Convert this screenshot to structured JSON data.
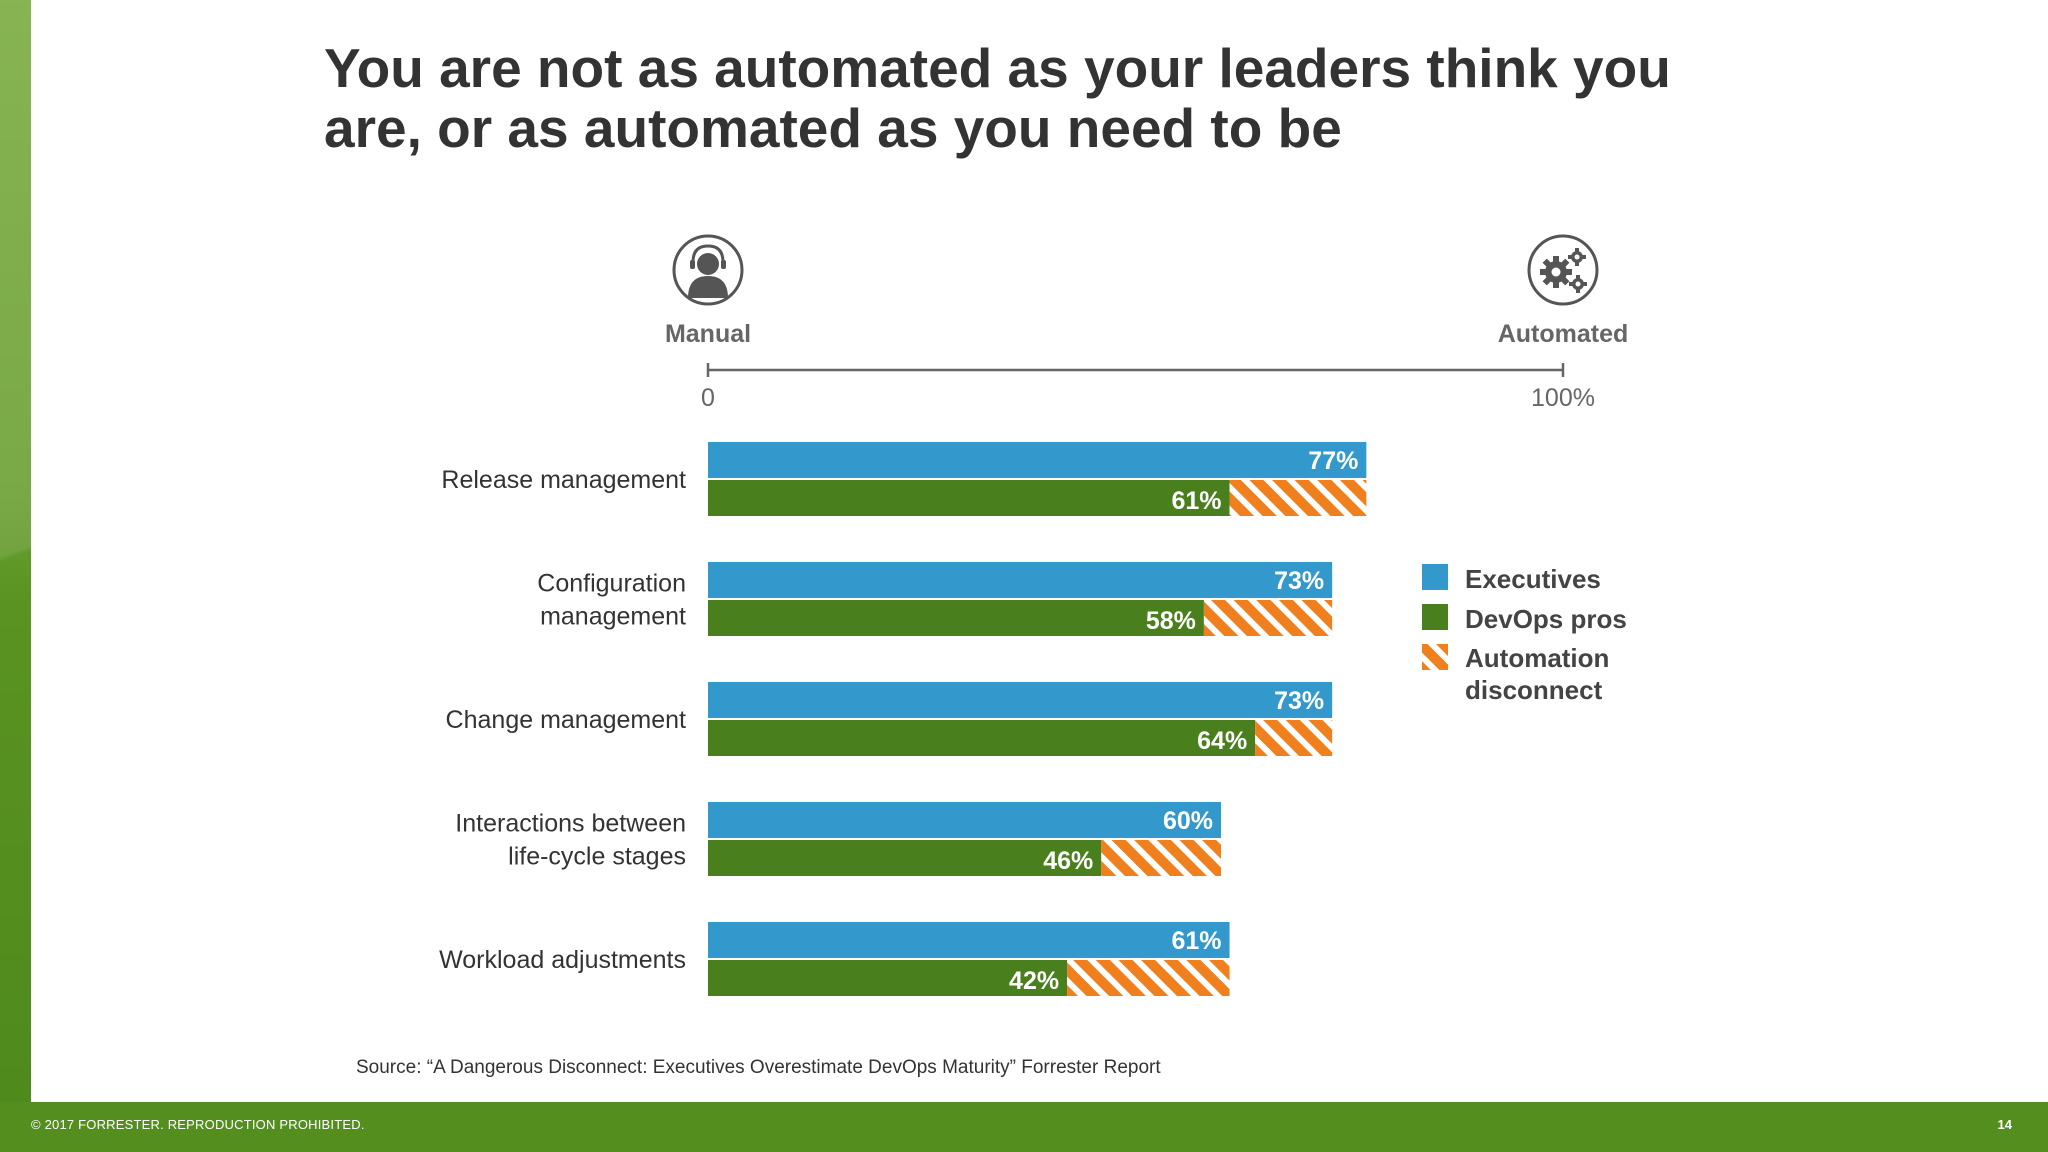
{
  "title_lines": [
    "You are not as automated as your leaders think you",
    "are, or as automated as you need to be"
  ],
  "source": "Source: “A Dangerous Disconnect: Executives Overestimate DevOps Maturity” Forrester Report",
  "footer": {
    "copyright": "© 2017 FORRESTER. REPRODUCTION PROHIBITED.",
    "page_number": "14"
  },
  "icons": {
    "manual": "person-headset-icon",
    "automated": "gears-icon"
  },
  "colors": {
    "executives": "#3399cc",
    "devops": "#4a7f1e",
    "disconnect": "#f07f1e",
    "text": "#333333",
    "muted": "#666666"
  },
  "chart_data": {
    "type": "bar",
    "orientation": "horizontal",
    "scale": {
      "left_label": "Manual",
      "right_label": "Automated",
      "min_tick": "0",
      "max_tick": "100%",
      "range": [
        0,
        100
      ]
    },
    "categories": [
      [
        "Release management"
      ],
      [
        "Configuration",
        "management"
      ],
      [
        "Change management"
      ],
      [
        "Interactions between",
        "life-cycle stages"
      ],
      [
        "Workload adjustments"
      ]
    ],
    "series": [
      {
        "name": "Executives",
        "values": [
          77,
          73,
          73,
          60,
          61
        ],
        "color": "#3399cc"
      },
      {
        "name": "DevOps pros",
        "values": [
          61,
          58,
          64,
          46,
          42
        ],
        "color": "#4a7f1e"
      }
    ],
    "disconnect": {
      "name": [
        "Automation",
        "disconnect"
      ],
      "color": "#f07f1e",
      "pattern": "diagonal-stripes"
    },
    "value_suffix": "%",
    "legend_position": "right"
  }
}
